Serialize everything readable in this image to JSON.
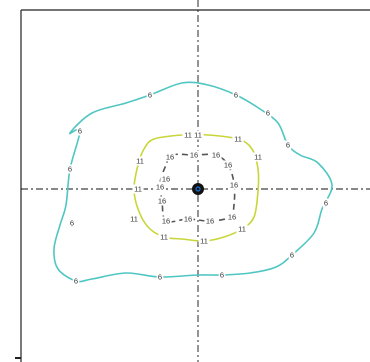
{
  "chart_data": {
    "type": "contour",
    "title": "",
    "xlabel": "",
    "ylabel": "",
    "levels": [
      {
        "value": 6,
        "label": "6",
        "color": "#4fc6c2",
        "dash": "solid",
        "label_positions": [
          [
            -24,
            47
          ],
          [
            19,
            47
          ],
          [
            35,
            38
          ],
          [
            45,
            22
          ],
          [
            -59,
            29
          ],
          [
            -64,
            10
          ],
          [
            -63,
            -17
          ],
          [
            -61,
            -46
          ],
          [
            -19,
            -44
          ],
          [
            12,
            -43
          ],
          [
            64,
            -7
          ],
          [
            47,
            -33
          ]
        ],
        "points": [
          [
            -64,
            28
          ],
          [
            -53,
            38
          ],
          [
            -36,
            43
          ],
          [
            -24,
            47
          ],
          [
            -8,
            53
          ],
          [
            5,
            52
          ],
          [
            19,
            47
          ],
          [
            31,
            40
          ],
          [
            40,
            33
          ],
          [
            45,
            22
          ],
          [
            51,
            17
          ],
          [
            60,
            13
          ],
          [
            67,
            2
          ],
          [
            62,
            -10
          ],
          [
            58,
            -22
          ],
          [
            47,
            -33
          ],
          [
            39,
            -39
          ],
          [
            26,
            -42
          ],
          [
            12,
            -43
          ],
          [
            0,
            -43
          ],
          [
            -19,
            -44
          ],
          [
            -36,
            -42
          ],
          [
            -53,
            -45
          ],
          [
            -61,
            -46
          ],
          [
            -70,
            -40
          ],
          [
            -72,
            -30
          ],
          [
            -69,
            -18
          ],
          [
            -66,
            -8
          ],
          [
            -64,
            10
          ],
          [
            -59,
            29
          ],
          [
            -64,
            28
          ]
        ]
      },
      {
        "value": 11,
        "label": "11",
        "color": "#c8d63a",
        "dash": "solid",
        "label_positions": [
          [
            0,
            27
          ],
          [
            20,
            25
          ],
          [
            30,
            16
          ],
          [
            -29,
            14
          ],
          [
            -30,
            0
          ],
          [
            -32,
            -15
          ],
          [
            -17,
            -24
          ],
          [
            3,
            -26
          ],
          [
            22,
            -20
          ],
          [
            -5,
            27
          ]
        ],
        "points": [
          [
            -22,
            25
          ],
          [
            -8,
            27
          ],
          [
            5,
            27
          ],
          [
            20,
            25
          ],
          [
            27,
            20
          ],
          [
            30,
            10
          ],
          [
            30,
            -1
          ],
          [
            28,
            -14
          ],
          [
            22,
            -20
          ],
          [
            13,
            -24
          ],
          [
            3,
            -26
          ],
          [
            -8,
            -25
          ],
          [
            -17,
            -24
          ],
          [
            -25,
            -19
          ],
          [
            -30,
            -10
          ],
          [
            -32,
            0
          ],
          [
            -30,
            12
          ],
          [
            -27,
            20
          ],
          [
            -22,
            25
          ]
        ]
      },
      {
        "value": 16,
        "label": "16",
        "color": "#555555",
        "dash": "dashed",
        "label_positions": [
          [
            -14,
            16
          ],
          [
            -2,
            17
          ],
          [
            9,
            17
          ],
          [
            15,
            12
          ],
          [
            -16,
            5
          ],
          [
            -18,
            -6
          ],
          [
            -16,
            -16
          ],
          [
            -5,
            -15
          ],
          [
            6,
            -16
          ],
          [
            17,
            -14
          ],
          [
            -19,
            1
          ],
          [
            18,
            2
          ]
        ],
        "points": [
          [
            -13,
            17
          ],
          [
            -2,
            17
          ],
          [
            9,
            17
          ],
          [
            15,
            12
          ],
          [
            18,
            3
          ],
          [
            18,
            -8
          ],
          [
            16,
            -14
          ],
          [
            6,
            -16
          ],
          [
            -5,
            -15
          ],
          [
            -16,
            -16
          ],
          [
            -18,
            -6
          ],
          [
            -19,
            3
          ],
          [
            -16,
            12
          ],
          [
            -13,
            17
          ]
        ]
      }
    ],
    "center_marker": {
      "x": 0,
      "y": 0,
      "fill": "#111111",
      "ring": "#1a6fd1"
    },
    "crosshair": {
      "style": "dash-dot",
      "color": "#111111"
    },
    "frame_color": "#222222"
  }
}
